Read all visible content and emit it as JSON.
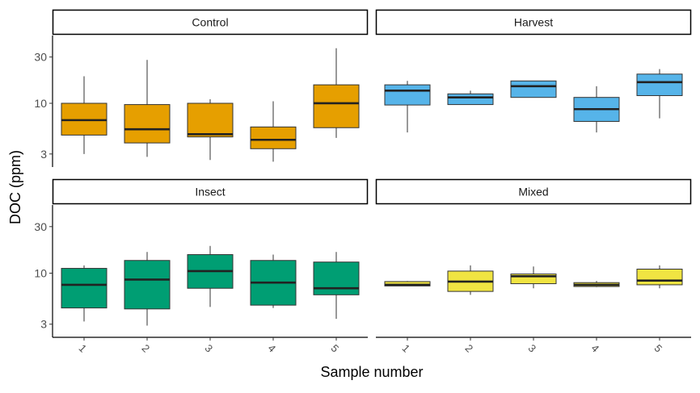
{
  "chart_data": {
    "type": "boxplot",
    "layout": "facet-grid-2x2",
    "xlabel": "Sample number",
    "ylabel": "DOC (ppm)",
    "y_scale": "log10",
    "ylim": [
      2.2,
      50
    ],
    "y_ticks": [
      3,
      10,
      30
    ],
    "x_categories": [
      "1",
      "2",
      "3",
      "4",
      "5"
    ],
    "grid": false,
    "legend": "none",
    "panels": [
      {
        "title": "Control",
        "color": "#E69F00",
        "boxes": [
          {
            "x": "1",
            "min": 3.0,
            "q1": 4.7,
            "median": 6.7,
            "q3": 10.0,
            "max": 19.0
          },
          {
            "x": "2",
            "min": 2.8,
            "q1": 3.9,
            "median": 5.4,
            "q3": 9.7,
            "max": 28.0
          },
          {
            "x": "3",
            "min": 2.6,
            "q1": 4.5,
            "median": 4.8,
            "q3": 10.0,
            "max": 11.0
          },
          {
            "x": "4",
            "min": 2.5,
            "q1": 3.4,
            "median": 4.2,
            "q3": 5.7,
            "max": 10.5
          },
          {
            "x": "5",
            "min": 4.4,
            "q1": 5.6,
            "median": 10.0,
            "q3": 15.5,
            "max": 37.0
          }
        ]
      },
      {
        "title": "Harvest",
        "color": "#56B4E9",
        "boxes": [
          {
            "x": "1",
            "min": 5.0,
            "q1": 9.6,
            "median": 13.5,
            "q3": 15.5,
            "max": 17.0
          },
          {
            "x": "2",
            "min": 9.7,
            "q1": 9.7,
            "median": 11.5,
            "q3": 12.5,
            "max": 13.5
          },
          {
            "x": "3",
            "min": 11.5,
            "q1": 11.5,
            "median": 15.0,
            "q3": 17.0,
            "max": 17.0
          },
          {
            "x": "4",
            "min": 5.0,
            "q1": 6.5,
            "median": 8.7,
            "q3": 11.5,
            "max": 15.0
          },
          {
            "x": "5",
            "min": 7.0,
            "q1": 12.0,
            "median": 16.5,
            "q3": 20.0,
            "max": 22.5
          }
        ]
      },
      {
        "title": "Insect",
        "color": "#009E73",
        "boxes": [
          {
            "x": "1",
            "min": 3.2,
            "q1": 4.4,
            "median": 7.6,
            "q3": 11.2,
            "max": 12.0
          },
          {
            "x": "2",
            "min": 2.9,
            "q1": 4.3,
            "median": 8.6,
            "q3": 13.5,
            "max": 16.5
          },
          {
            "x": "3",
            "min": 4.5,
            "q1": 7.0,
            "median": 10.5,
            "q3": 15.5,
            "max": 19.0
          },
          {
            "x": "4",
            "min": 4.4,
            "q1": 4.7,
            "median": 8.0,
            "q3": 13.5,
            "max": 15.5
          },
          {
            "x": "5",
            "min": 3.4,
            "q1": 6.0,
            "median": 7.0,
            "q3": 13.0,
            "max": 16.5
          }
        ]
      },
      {
        "title": "Mixed",
        "color": "#F0E442",
        "boxes": [
          {
            "x": "1",
            "min": 7.4,
            "q1": 7.4,
            "median": 7.6,
            "q3": 8.2,
            "max": 8.3
          },
          {
            "x": "2",
            "min": 6.0,
            "q1": 6.5,
            "median": 8.2,
            "q3": 10.5,
            "max": 12.0
          },
          {
            "x": "3",
            "min": 7.0,
            "q1": 7.8,
            "median": 9.3,
            "q3": 9.8,
            "max": 11.7
          },
          {
            "x": "4",
            "min": 7.2,
            "q1": 7.3,
            "median": 7.6,
            "q3": 8.0,
            "max": 8.3
          },
          {
            "x": "5",
            "min": 7.0,
            "q1": 7.6,
            "median": 8.4,
            "q3": 11.0,
            "max": 12.0
          }
        ]
      }
    ]
  }
}
